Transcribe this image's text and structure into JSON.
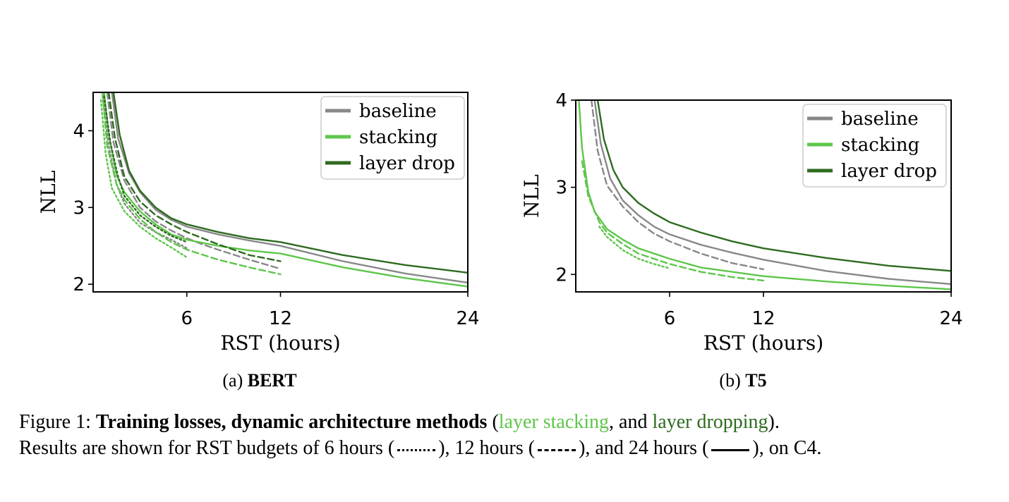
{
  "colors": {
    "baseline": "#888888",
    "stacking": "#5ec64a",
    "layer_drop": "#2e6b1f"
  },
  "chart_data": [
    {
      "type": "line",
      "subcaption_prefix": "(a)",
      "subcaption_bold": "BERT",
      "xlabel": "RST (hours)",
      "ylabel": "NLL",
      "xticks": [
        6,
        12,
        24
      ],
      "yticks": [
        2,
        3,
        4
      ],
      "xlim": [
        0,
        24
      ],
      "ylim": [
        1.9,
        4.5
      ],
      "grid": false,
      "legend_position": "top-right",
      "legend": [
        "baseline",
        "stacking",
        "layer drop"
      ],
      "series": [
        {
          "name": "baseline",
          "budget": 24,
          "style": "solid",
          "x": [
            1.2,
            1.6,
            2.3,
            3,
            4,
            5,
            6,
            8,
            10,
            12,
            16,
            20,
            24
          ],
          "y": [
            4.5,
            3.9,
            3.45,
            3.2,
            2.97,
            2.84,
            2.75,
            2.65,
            2.57,
            2.5,
            2.3,
            2.14,
            2.02
          ]
        },
        {
          "name": "baseline",
          "budget": 12,
          "style": "dashed",
          "x": [
            0.9,
            1.3,
            2,
            3,
            4,
            5,
            6,
            7,
            8,
            10,
            12
          ],
          "y": [
            4.5,
            3.85,
            3.35,
            3.0,
            2.82,
            2.7,
            2.6,
            2.52,
            2.45,
            2.32,
            2.2
          ]
        },
        {
          "name": "baseline",
          "budget": 6,
          "style": "dotted",
          "x": [
            0.6,
            1,
            1.5,
            2,
            3,
            4,
            5,
            6
          ],
          "y": [
            4.45,
            3.8,
            3.3,
            3.05,
            2.8,
            2.68,
            2.58,
            2.47
          ]
        },
        {
          "name": "stacking",
          "budget": 24,
          "style": "solid",
          "x": [
            0.7,
            1,
            1.5,
            2,
            3,
            4,
            5,
            6,
            8,
            10,
            12,
            16,
            20,
            24
          ],
          "y": [
            4.5,
            3.95,
            3.42,
            3.2,
            2.95,
            2.78,
            2.65,
            2.58,
            2.5,
            2.44,
            2.4,
            2.22,
            2.08,
            1.97
          ]
        },
        {
          "name": "stacking",
          "budget": 12,
          "style": "dashed",
          "x": [
            0.6,
            0.9,
            1.5,
            2,
            3,
            4,
            5,
            6,
            8,
            10,
            12
          ],
          "y": [
            4.5,
            3.8,
            3.3,
            3.1,
            2.85,
            2.68,
            2.55,
            2.45,
            2.32,
            2.22,
            2.13
          ]
        },
        {
          "name": "stacking",
          "budget": 6,
          "style": "dotted",
          "x": [
            0.5,
            0.8,
            1.2,
            2,
            3,
            4,
            5,
            6
          ],
          "y": [
            4.4,
            3.7,
            3.25,
            2.95,
            2.75,
            2.6,
            2.48,
            2.35
          ]
        },
        {
          "name": "layer drop",
          "budget": 24,
          "style": "solid",
          "x": [
            1.3,
            1.7,
            2.3,
            3,
            4,
            5,
            6,
            8,
            10,
            12,
            16,
            20,
            24
          ],
          "y": [
            4.5,
            3.95,
            3.48,
            3.22,
            3.0,
            2.86,
            2.78,
            2.68,
            2.6,
            2.55,
            2.38,
            2.25,
            2.15
          ]
        },
        {
          "name": "layer drop",
          "budget": 12,
          "style": "dashed",
          "x": [
            1,
            1.4,
            2,
            3,
            4,
            5,
            6,
            8,
            10,
            12
          ],
          "y": [
            4.5,
            3.9,
            3.4,
            3.08,
            2.9,
            2.78,
            2.68,
            2.52,
            2.38,
            2.3
          ]
        },
        {
          "name": "layer drop",
          "budget": 6,
          "style": "dotted",
          "x": [
            0.7,
            1.1,
            1.6,
            2,
            3,
            4,
            5,
            6
          ],
          "y": [
            4.45,
            3.85,
            3.4,
            3.15,
            2.9,
            2.75,
            2.63,
            2.55
          ]
        }
      ]
    },
    {
      "type": "line",
      "subcaption_prefix": "(b)",
      "subcaption_bold": "T5",
      "xlabel": "RST (hours)",
      "ylabel": "NLL",
      "xticks": [
        6,
        12,
        24
      ],
      "yticks": [
        2,
        3,
        4
      ],
      "xlim": [
        0,
        24
      ],
      "ylim": [
        1.8,
        4.0
      ],
      "grid": false,
      "legend_position": "top-right",
      "legend": [
        "baseline",
        "stacking",
        "layer drop"
      ],
      "series": [
        {
          "name": "baseline",
          "budget": 24,
          "style": "solid",
          "x": [
            1.2,
            1.6,
            2.2,
            3,
            4,
            5,
            6,
            8,
            10,
            12,
            16,
            20,
            24
          ],
          "y": [
            4.0,
            3.5,
            3.1,
            2.85,
            2.68,
            2.55,
            2.46,
            2.34,
            2.25,
            2.17,
            2.04,
            1.95,
            1.89
          ]
        },
        {
          "name": "baseline",
          "budget": 12,
          "style": "dashed",
          "x": [
            1.0,
            1.4,
            2,
            3,
            4,
            5,
            6,
            8,
            10,
            12
          ],
          "y": [
            4.0,
            3.42,
            3.02,
            2.78,
            2.6,
            2.47,
            2.38,
            2.24,
            2.13,
            2.06
          ]
        },
        {
          "name": "stacking",
          "budget": 24,
          "style": "solid",
          "x": [
            0.2,
            0.4,
            0.8,
            1.2,
            2,
            3,
            4,
            6,
            8,
            12,
            16,
            20,
            24
          ],
          "y": [
            4.0,
            3.45,
            2.95,
            2.72,
            2.52,
            2.4,
            2.3,
            2.18,
            2.08,
            1.98,
            1.92,
            1.87,
            1.83
          ]
        },
        {
          "name": "stacking",
          "budget": 12,
          "style": "dashed",
          "x": [
            0.4,
            0.8,
            1.5,
            2,
            3,
            4,
            6,
            8,
            10,
            12
          ],
          "y": [
            3.3,
            2.9,
            2.6,
            2.48,
            2.35,
            2.24,
            2.12,
            2.03,
            1.97,
            1.93
          ]
        },
        {
          "name": "stacking",
          "budget": 6,
          "style": "dotted",
          "x": [
            1.5,
            2,
            3,
            4,
            5,
            6
          ],
          "y": [
            2.55,
            2.43,
            2.28,
            2.18,
            2.12,
            2.07
          ]
        },
        {
          "name": "layer drop",
          "budget": 24,
          "style": "solid",
          "x": [
            1.4,
            1.8,
            2.4,
            3,
            4,
            5,
            6,
            8,
            10,
            12,
            16,
            20,
            24
          ],
          "y": [
            4.0,
            3.55,
            3.2,
            3.0,
            2.82,
            2.7,
            2.6,
            2.48,
            2.38,
            2.3,
            2.19,
            2.1,
            2.04
          ]
        }
      ]
    }
  ],
  "caption": {
    "prefix": "Figure 1:",
    "bold": "Training losses, dynamic architecture methods",
    "paren_open": "(",
    "green_light": "layer stacking",
    "middle": ", and",
    "green_dark": "layer dropping",
    "paren_close": ").",
    "line2_a": "Results are shown for RST budgets of 6 hours (",
    "line2_b": "), 12 hours (",
    "line2_c": "), and 24 hours (",
    "line2_d": "), on C4."
  }
}
